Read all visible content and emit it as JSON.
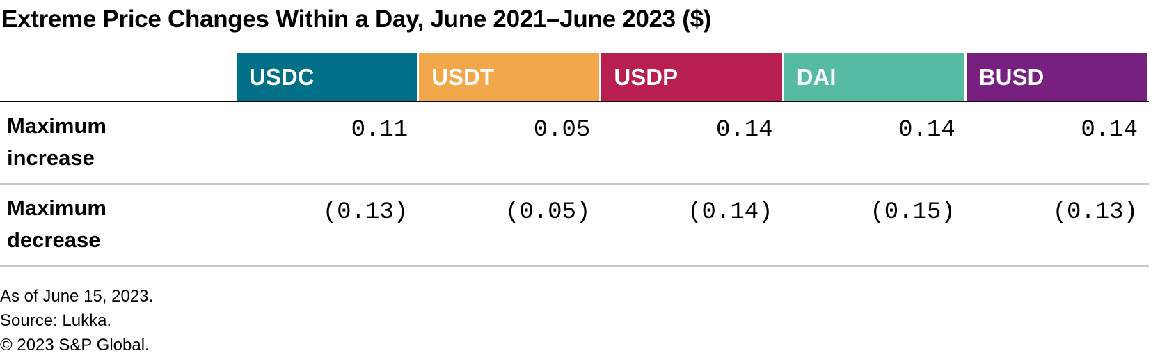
{
  "title": "Extreme Price Changes Within a Day, June 2021–June 2023 ($)",
  "table": {
    "columns": [
      {
        "label": "USDC",
        "color": "#007089"
      },
      {
        "label": "USDT",
        "color": "#f2a74b"
      },
      {
        "label": "USDP",
        "color": "#b81f4e"
      },
      {
        "label": "DAI",
        "color": "#55bca3"
      },
      {
        "label": "BUSD",
        "color": "#77207f"
      }
    ],
    "rows": [
      {
        "label": "Maximum increase",
        "cells": [
          "0.11",
          "0.05",
          "0.14",
          "0.14",
          "0.14"
        ]
      },
      {
        "label": "Maximum decrease",
        "cells": [
          "(0.13)",
          "(0.05)",
          "(0.14)",
          "(0.15)",
          "(0.13)"
        ]
      }
    ]
  },
  "notes": [
    "As of June 15, 2023.",
    "Source: Lukka.",
    "© 2023 S&P Global."
  ]
}
